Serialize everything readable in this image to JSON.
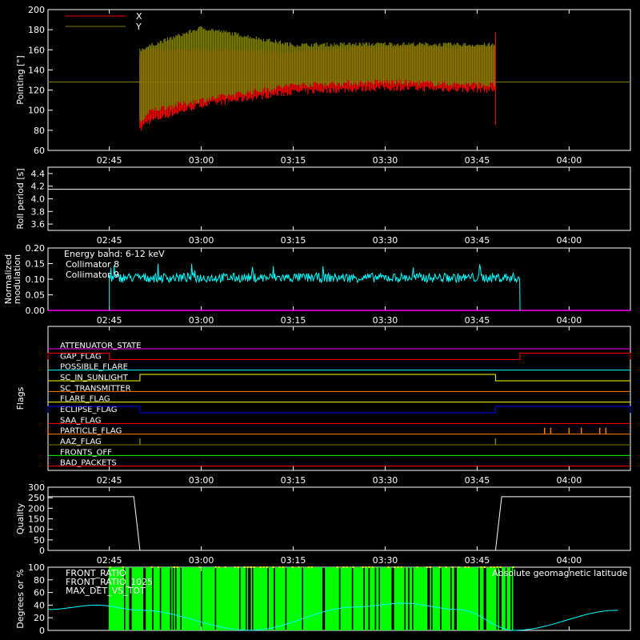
{
  "colors": {
    "background": "#000000",
    "axis": "#ffffff",
    "x_pointing": "#ff0000",
    "y_pointing": "#808000",
    "collimator_8": "#00ffff",
    "collimator_9": "#ff00ff",
    "geomag_latitude": "#00ffff",
    "front_ratio": "#ffff00",
    "front_ratio_1025": "#00ff00",
    "max_det_vs_tot": "#ff7f00"
  },
  "time_axis": {
    "start": "02:35",
    "end": "04:10",
    "tick_labels": [
      "02:45",
      "03:00",
      "03:15",
      "03:30",
      "03:45",
      "04:00"
    ]
  },
  "chart_data": [
    {
      "id": "pointing",
      "type": "line",
      "ylabel": "Pointing [\"]",
      "ylim": [
        60,
        200
      ],
      "yticks": [
        "60",
        "80",
        "100",
        "120",
        "140",
        "160",
        "180",
        "200"
      ],
      "legend": [
        {
          "label": "X",
          "color": "#ff0000"
        },
        {
          "label": "Y",
          "color": "#808000"
        }
      ],
      "baseline": 128,
      "active_interval": [
        "02:50",
        "03:48"
      ],
      "series": [
        {
          "name": "X",
          "x": [
            "02:50",
            "02:51",
            "03:00",
            "03:15",
            "03:30",
            "03:47"
          ],
          "y_upper": [
            155,
            160,
            160,
            158,
            163,
            162
          ],
          "y_lower": [
            80,
            88,
            105,
            118,
            122,
            120
          ]
        },
        {
          "name": "Y",
          "x": [
            "02:50",
            "02:52",
            "03:00",
            "03:15",
            "03:30",
            "03:47"
          ],
          "y_upper": [
            160,
            165,
            182,
            165,
            166,
            165
          ],
          "y_lower": [
            88,
            100,
            110,
            125,
            128,
            125
          ]
        }
      ]
    },
    {
      "id": "roll_period",
      "type": "line",
      "ylabel": "Roll period [s]",
      "ylim": [
        3.5,
        4.5
      ],
      "yticks": [
        "3.6",
        "3.8",
        "4.0",
        "4.2",
        "4.4"
      ],
      "series": [
        {
          "x": [
            "02:35",
            "04:10"
          ],
          "y": [
            4.15,
            4.15
          ]
        }
      ]
    },
    {
      "id": "modulation",
      "type": "line",
      "ylabel": "Normalized modulation",
      "ylim": [
        0,
        0.2
      ],
      "yticks": [
        "0.00",
        "0.05",
        "0.10",
        "0.15",
        "0.20"
      ],
      "annotation": "Energy band: 6-12 keV",
      "legend": [
        {
          "label": "Collimator 8",
          "color": "#00ffff"
        },
        {
          "label": "Collimator 9",
          "color": "#ff00ff"
        }
      ],
      "series": [
        {
          "name": "Collimator 8",
          "active_interval": [
            "02:45",
            "03:52"
          ],
          "mean": 0.105,
          "noise": 0.015
        },
        {
          "name": "Collimator 9",
          "x": [
            "02:35",
            "04:10"
          ],
          "y": [
            0,
            0
          ]
        }
      ]
    },
    {
      "id": "flags",
      "type": "line",
      "ylabel": "Flags",
      "flags": [
        {
          "name": "ATTENUATOR_STATE",
          "color": "#ff00ff",
          "high": []
        },
        {
          "name": "GAP_FLAG",
          "color": "#ff0000",
          "high": [
            [
              "02:35",
              "02:45"
            ],
            [
              "03:52",
              "04:10"
            ]
          ]
        },
        {
          "name": "POSSIBLE_FLARE",
          "color": "#00ffff",
          "high": []
        },
        {
          "name": "SC_IN_SUNLIGHT",
          "color": "#ffff00",
          "high": [
            [
              "02:50",
              "03:48"
            ]
          ]
        },
        {
          "name": "SC_TRANSMITTER",
          "color": "#ff7f00",
          "high": []
        },
        {
          "name": "FLARE_FLAG",
          "color": "#ffff00",
          "high": []
        },
        {
          "name": "ECLIPSE_FLAG",
          "color": "#0000ff",
          "high": [
            [
              "02:35",
              "02:50"
            ],
            [
              "03:48",
              "04:10"
            ]
          ]
        },
        {
          "name": "SAA_FLAG",
          "color": "#ff0000",
          "high": []
        },
        {
          "name": "PARTICLE_FLAG",
          "color": "#ff7f00",
          "spikes": [
            "02:35",
            "03:56",
            "03:57",
            "04:00",
            "04:02",
            "04:05",
            "04:06"
          ]
        },
        {
          "name": "AAZ_FLAG",
          "color": "#808000",
          "spikes": [
            "02:50",
            "03:48"
          ]
        },
        {
          "name": "FRONTS_OFF",
          "color": "#00ff00",
          "high": []
        },
        {
          "name": "BAD_PACKETS",
          "color": "#ff0000",
          "high": []
        }
      ]
    },
    {
      "id": "quality",
      "type": "line",
      "ylabel": "Quality",
      "ylim": [
        0,
        300
      ],
      "yticks": [
        "0",
        "50",
        "100",
        "150",
        "200",
        "250",
        "300"
      ],
      "series": [
        {
          "x": [
            "02:35",
            "02:49",
            "02:50",
            "03:48",
            "03:49",
            "04:10"
          ],
          "y": [
            255,
            255,
            0,
            0,
            255,
            255
          ]
        }
      ]
    },
    {
      "id": "ratios",
      "type": "line",
      "ylabel": "Degrees or %",
      "ylim": [
        0,
        100
      ],
      "yticks": [
        "0",
        "20",
        "40",
        "60",
        "80",
        "100"
      ],
      "legend": [
        {
          "label": "FRONT_RATIO",
          "color": "#ffff00"
        },
        {
          "label": "FRONT_RATIO_1025",
          "color": "#00ff00"
        },
        {
          "label": "MAX_DET_VS_TOT",
          "color": "#ff7f00"
        }
      ],
      "right_legend": {
        "label": "Absolute geomagnetic latitude",
        "color": "#00ffff"
      },
      "geomag_latitude": {
        "x": [
          "02:35",
          "02:43",
          "02:50",
          "03:08",
          "03:25",
          "03:33",
          "03:42",
          "03:51",
          "04:08"
        ],
        "y": [
          33,
          40,
          32,
          0,
          37,
          43,
          33,
          0,
          32
        ]
      },
      "front_ratio_1025": {
        "active_interval": [
          "02:45",
          "03:51"
        ],
        "value": 100
      }
    }
  ]
}
